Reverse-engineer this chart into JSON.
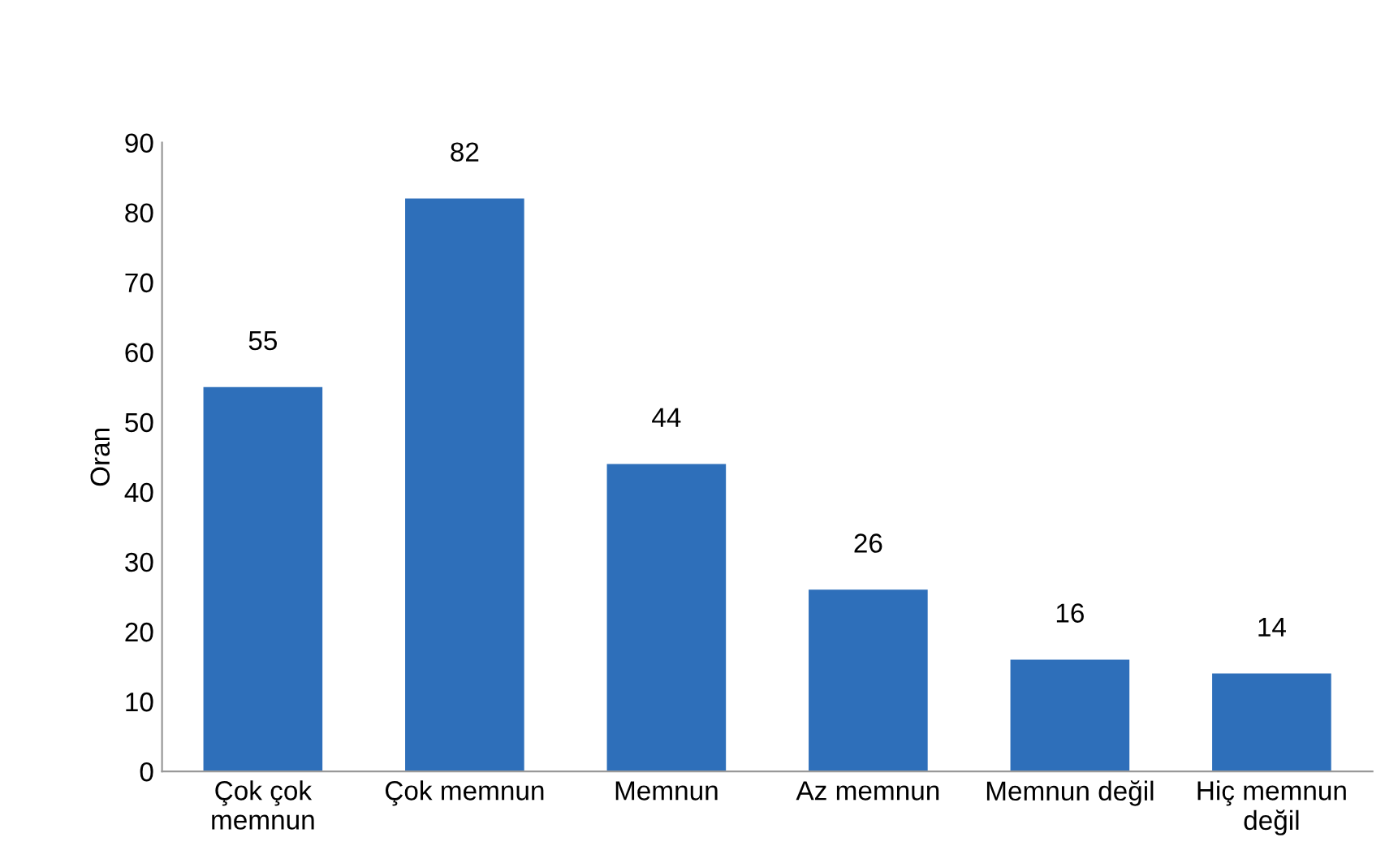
{
  "chart_data": {
    "type": "bar",
    "ylabel": "Oran",
    "categories": [
      "Çok çok\nmemnun",
      "Çok memnun",
      "Memnun",
      "Az memnun",
      "Memnun değil",
      "Hiç memnun\ndeğil"
    ],
    "values": [
      55,
      82,
      44,
      26,
      16,
      14
    ],
    "color": "#2e6fba",
    "ylim": [
      0,
      90
    ],
    "yticks": [
      0,
      10,
      20,
      30,
      40,
      50,
      60,
      70,
      80,
      90
    ],
    "data_labels": true,
    "grid": false
  }
}
